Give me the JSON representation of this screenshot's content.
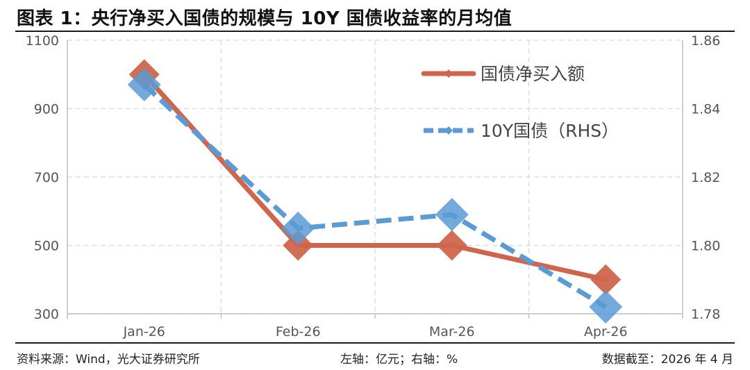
{
  "header": {
    "title": "图表 1：央行净买入国债的规模与 10Y 国债收益率的月均值"
  },
  "footer": {
    "source": "资料来源：Wind，光大证券研究所",
    "axes_note": "左轴：亿元；右轴：%",
    "date_note": "数据截至：2026 年 4 月"
  },
  "colors": {
    "series_purchase": "#d0654d",
    "series_yield": "#5b9bd5",
    "grid": "#d9d9d9",
    "axis": "#bfbfbf"
  },
  "chart_data": {
    "type": "line",
    "categories": [
      "Jan-26",
      "Feb-26",
      "Mar-26",
      "Apr-26"
    ],
    "series": [
      {
        "name": "国债净买入额",
        "axis": "left",
        "values": [
          1000,
          500,
          500,
          400
        ],
        "style": "solid",
        "marker": "diamond"
      },
      {
        "name": "10Y国债（RHS）",
        "axis": "right",
        "values": [
          1.847,
          1.805,
          1.809,
          1.782
        ],
        "style": "dashed",
        "marker": "diamond"
      }
    ],
    "y_left": {
      "ylim": [
        300,
        1100
      ],
      "ticks": [
        300,
        500,
        700,
        900,
        1100
      ],
      "tick_labels": [
        "300",
        "500",
        "700",
        "900",
        "1100"
      ]
    },
    "y_right": {
      "ylim": [
        1.78,
        1.86
      ],
      "ticks": [
        1.78,
        1.8,
        1.82,
        1.84,
        1.86
      ],
      "tick_labels": [
        "1.78",
        "1.80",
        "1.82",
        "1.84",
        "1.86"
      ]
    },
    "grid": "dashed",
    "legend_position": "top-right"
  }
}
